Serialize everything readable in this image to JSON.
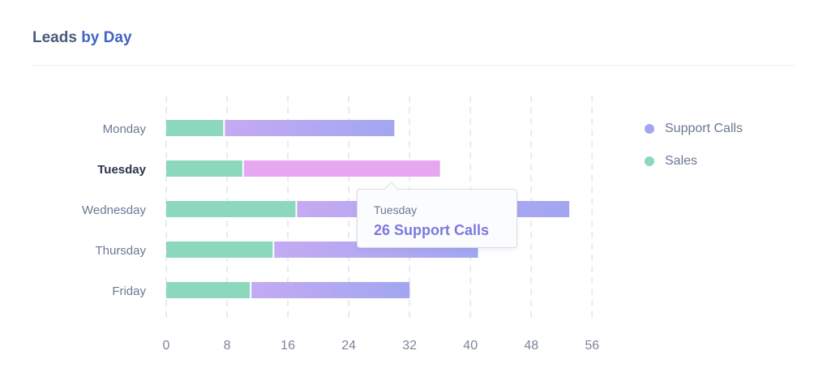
{
  "title_part1": "Leads",
  "title_part2": "by Day",
  "colors": {
    "support_start": "#c4aaf2",
    "support_end": "#a2a6f1",
    "support_highlight": "#e7a6f0",
    "sales": "#8cd8bd",
    "title_accent": "#3f63c7"
  },
  "tooltip": {
    "day": "Tuesday",
    "value": "26 Support Calls"
  },
  "chart_data": {
    "type": "bar",
    "orientation": "horizontal",
    "stacked": true,
    "categories": [
      "Monday",
      "Tuesday",
      "Wednesday",
      "Thursday",
      "Friday"
    ],
    "series": [
      {
        "name": "Sales",
        "values": [
          7.5,
          10,
          17,
          14,
          11
        ]
      },
      {
        "name": "Support Calls",
        "values": [
          22.5,
          26,
          36,
          27,
          21
        ]
      }
    ],
    "x_ticks": [
      0,
      8,
      16,
      24,
      32,
      40,
      48,
      56
    ],
    "xlim": [
      0,
      56
    ],
    "highlighted_category": "Tuesday",
    "legend": [
      "Support Calls",
      "Sales"
    ],
    "legend_position": "right",
    "grid": "vertical-dashed"
  }
}
